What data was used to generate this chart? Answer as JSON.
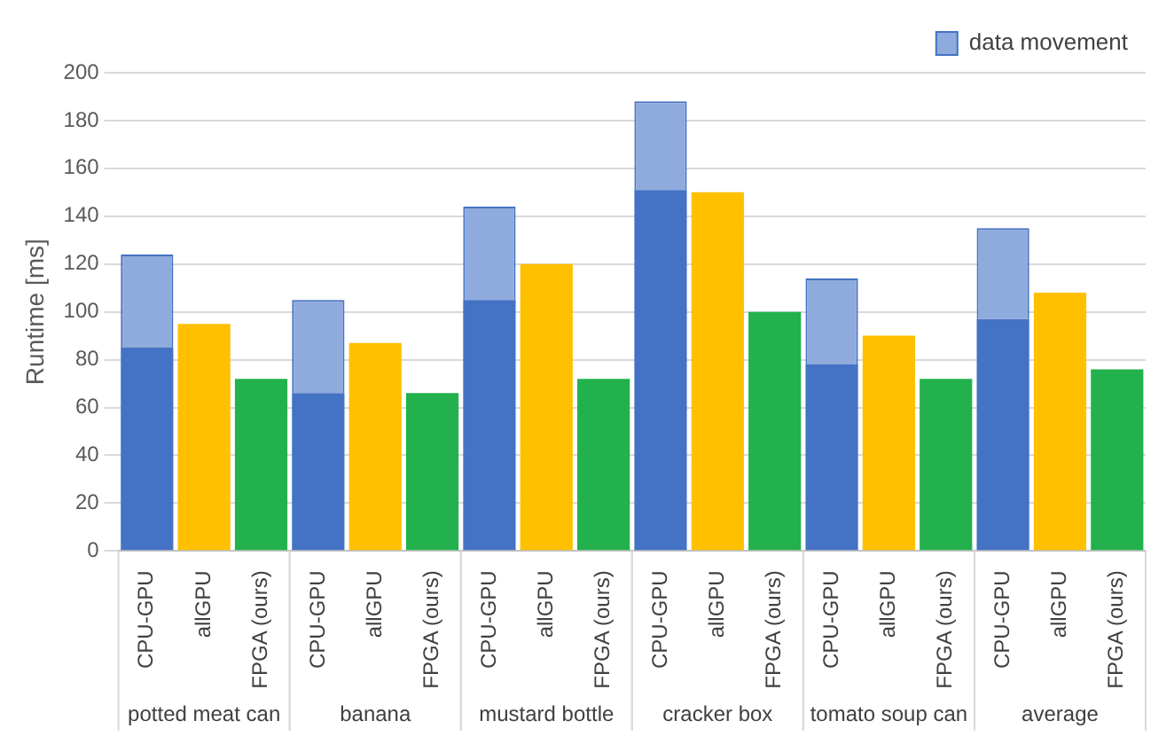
{
  "chart_data": {
    "type": "bar",
    "ylabel": "Runtime [ms]",
    "categories": [
      "CPU-GPU",
      "allGPU",
      "FPGA (ours)",
      "CPU-GPU",
      "allGPU",
      "FPGA (ours)",
      "CPU-GPU",
      "allGPU",
      "FPGA (ours)",
      "CPU-GPU",
      "allGPU",
      "FPGA (ours)",
      "CPU-GPU",
      "allGPU",
      "FPGA (ours)",
      "CPU-GPU",
      "allGPU",
      "FPGA (ours)"
    ],
    "stacked": true,
    "series": [
      {
        "colors": [
          "#4472c4",
          "#ffc000",
          "#22b14c",
          "#4472c4",
          "#ffc000",
          "#22b14c",
          "#4472c4",
          "#ffc000",
          "#22b14c",
          "#4472c4",
          "#ffc000",
          "#22b14c",
          "#4472c4",
          "#ffc000",
          "#22b14c",
          "#4472c4",
          "#ffc000",
          "#22b14c"
        ],
        "values": [
          85,
          95,
          72,
          66,
          87,
          66,
          105,
          120,
          72,
          151,
          150,
          100,
          78,
          90,
          72,
          97,
          108,
          76
        ]
      },
      {
        "name": "data movement",
        "color": "#8faadc",
        "values": [
          39,
          null,
          null,
          39,
          null,
          null,
          39,
          null,
          null,
          37,
          null,
          null,
          36,
          null,
          null,
          38,
          null,
          null
        ]
      }
    ],
    "ylim": [
      0,
      200
    ],
    "yticks": [
      0,
      20,
      40,
      60,
      80,
      100,
      120,
      140,
      160,
      180,
      200
    ],
    "grid": "y",
    "legend": "top right",
    "annotations": [
      "potted meat can",
      "banana",
      "mustard bottle",
      "cracker box",
      "tomato soup can",
      "average"
    ]
  }
}
